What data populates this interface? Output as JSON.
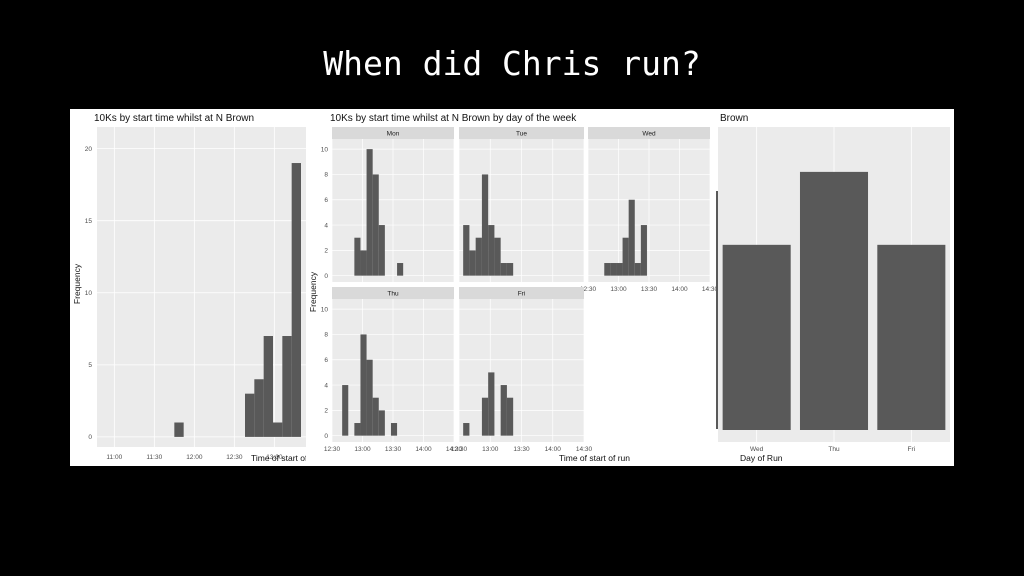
{
  "slide_title": "When did Chris run?",
  "colors": {
    "bar": "#595959",
    "panel_bg": "#ebebeb",
    "grid_major": "#ffffff",
    "strip_bg": "#d9d9d9"
  },
  "chart_data": [
    {
      "type": "bar",
      "title": "10Ks by start time whilst at N Brown",
      "xlabel": "Time of start of run",
      "ylabel": "Frequency",
      "xticks": [
        "11:00",
        "11:30",
        "12:00",
        "12:30",
        "13:00"
      ],
      "yticks": [
        0,
        5,
        10,
        15,
        20
      ],
      "ylim": [
        -0.7,
        21.5
      ],
      "bins": [
        {
          "start": "11:45",
          "end": "11:52",
          "value": 1
        },
        {
          "start": "12:38",
          "end": "12:45",
          "value": 3
        },
        {
          "start": "12:45",
          "end": "12:52",
          "value": 4
        },
        {
          "start": "12:52",
          "end": "12:59",
          "value": 7
        },
        {
          "start": "12:59",
          "end": "13:06",
          "value": 1
        },
        {
          "start": "13:06",
          "end": "13:13",
          "value": 7
        },
        {
          "start": "13:13",
          "end": "13:20",
          "value": 19
        }
      ]
    },
    {
      "type": "bar",
      "title": "10Ks by start time whilst at N Brown by day of the week",
      "xlabel": "Time of start of run",
      "ylabel": "Frequency",
      "xticks": [
        "12:30",
        "13:00",
        "13:30",
        "14:00",
        "14:30"
      ],
      "yticks": [
        0,
        2,
        4,
        6,
        8,
        10
      ],
      "ylim": [
        -0.5,
        10.8
      ],
      "bin_starts": [
        "12:34",
        "12:40",
        "12:46",
        "12:52",
        "12:58",
        "13:04",
        "13:10",
        "13:16",
        "13:22",
        "13:28",
        "13:34",
        "13:40",
        "13:46",
        "13:52",
        "13:58",
        "14:04",
        "14:10",
        "14:16"
      ],
      "bin_width_minutes": 6,
      "facets": [
        {
          "name": "Mon",
          "values": [
            0,
            0,
            0,
            3,
            2,
            10,
            8,
            4,
            0,
            0,
            1,
            0,
            0,
            0,
            0,
            0,
            0,
            0
          ]
        },
        {
          "name": "Tue",
          "values": [
            4,
            2,
            3,
            8,
            4,
            3,
            1,
            1,
            0,
            0,
            0,
            0,
            0,
            0,
            0,
            0,
            0,
            0
          ]
        },
        {
          "name": "Wed",
          "values": [
            0,
            0,
            1,
            1,
            1,
            3,
            6,
            1,
            4,
            0,
            0,
            0,
            0,
            0,
            0,
            0,
            0,
            0
          ]
        },
        {
          "name": "Thu",
          "values": [
            0,
            4,
            0,
            1,
            8,
            6,
            3,
            2,
            0,
            1,
            0,
            0,
            0,
            0,
            0,
            0,
            0,
            0
          ]
        },
        {
          "name": "Fri",
          "values": [
            1,
            0,
            0,
            3,
            5,
            0,
            4,
            3,
            0,
            0,
            0,
            0,
            0,
            0,
            0,
            0,
            0,
            0
          ]
        }
      ]
    },
    {
      "type": "bar",
      "title": "Brown",
      "xlabel": "Day of Run",
      "categories": [
        "Wed",
        "Thu",
        "Fri"
      ],
      "values": [
        1.65,
        2.3,
        1.65
      ]
    }
  ]
}
